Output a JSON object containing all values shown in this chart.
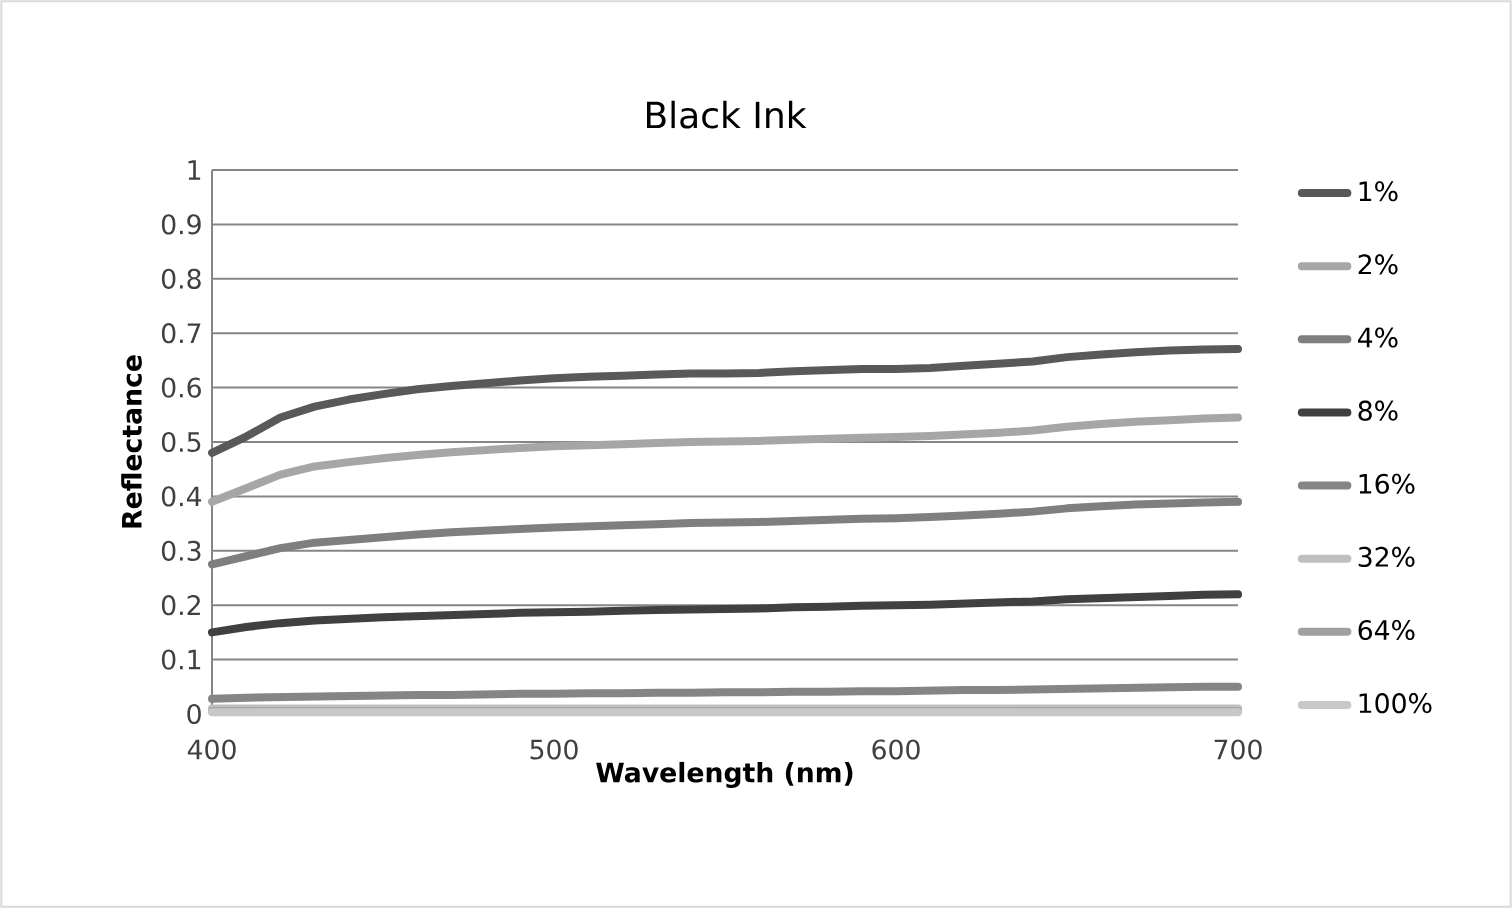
{
  "chart_data": {
    "type": "line",
    "title": "Black Ink",
    "xlabel": "Wavelength (nm)",
    "ylabel": "Reflectance",
    "x": [
      400,
      410,
      420,
      430,
      440,
      450,
      460,
      470,
      480,
      490,
      500,
      510,
      520,
      530,
      540,
      550,
      560,
      570,
      580,
      590,
      600,
      610,
      620,
      630,
      640,
      650,
      660,
      670,
      680,
      690,
      700
    ],
    "xlim": [
      400,
      700
    ],
    "xticks": [
      400,
      500,
      600,
      700
    ],
    "ylim": [
      0,
      1
    ],
    "yticks": [
      0,
      0.1,
      0.2,
      0.3,
      0.4,
      0.5,
      0.6,
      0.7,
      0.8,
      0.9,
      1
    ],
    "grid": "y",
    "legend": "right",
    "marker": "none",
    "line_style": "solid",
    "series": [
      {
        "name": "1%",
        "color": "#595959",
        "values": [
          0.48,
          0.51,
          0.545,
          0.565,
          0.578,
          0.588,
          0.597,
          0.603,
          0.608,
          0.613,
          0.617,
          0.62,
          0.622,
          0.624,
          0.626,
          0.626,
          0.627,
          0.63,
          0.632,
          0.634,
          0.634,
          0.636,
          0.64,
          0.644,
          0.648,
          0.656,
          0.661,
          0.665,
          0.668,
          0.67,
          0.671
        ]
      },
      {
        "name": "2%",
        "color": "#a6a6a6",
        "values": [
          0.39,
          0.415,
          0.44,
          0.455,
          0.463,
          0.47,
          0.476,
          0.481,
          0.485,
          0.489,
          0.492,
          0.494,
          0.496,
          0.498,
          0.5,
          0.501,
          0.502,
          0.504,
          0.506,
          0.508,
          0.509,
          0.511,
          0.514,
          0.517,
          0.521,
          0.528,
          0.533,
          0.537,
          0.54,
          0.543,
          0.545
        ]
      },
      {
        "name": "4%",
        "color": "#7f7f7f",
        "values": [
          0.275,
          0.29,
          0.305,
          0.315,
          0.32,
          0.325,
          0.33,
          0.334,
          0.337,
          0.34,
          0.343,
          0.345,
          0.347,
          0.349,
          0.351,
          0.352,
          0.353,
          0.355,
          0.357,
          0.359,
          0.36,
          0.362,
          0.365,
          0.368,
          0.372,
          0.378,
          0.382,
          0.385,
          0.387,
          0.389,
          0.39
        ]
      },
      {
        "name": "8%",
        "color": "#404040",
        "values": [
          0.15,
          0.16,
          0.167,
          0.172,
          0.175,
          0.178,
          0.18,
          0.182,
          0.184,
          0.186,
          0.187,
          0.188,
          0.19,
          0.191,
          0.192,
          0.193,
          0.194,
          0.196,
          0.197,
          0.199,
          0.2,
          0.201,
          0.203,
          0.205,
          0.207,
          0.211,
          0.213,
          0.215,
          0.217,
          0.219,
          0.22
        ]
      },
      {
        "name": "16%",
        "color": "#858585",
        "values": [
          0.028,
          0.03,
          0.031,
          0.032,
          0.033,
          0.034,
          0.035,
          0.035,
          0.036,
          0.037,
          0.037,
          0.038,
          0.038,
          0.039,
          0.039,
          0.04,
          0.04,
          0.041,
          0.041,
          0.042,
          0.042,
          0.043,
          0.044,
          0.044,
          0.045,
          0.046,
          0.047,
          0.048,
          0.049,
          0.05,
          0.05
        ]
      },
      {
        "name": "32%",
        "color": "#bfbfbf",
        "values": [
          0.01,
          0.01,
          0.01,
          0.01,
          0.01,
          0.01,
          0.01,
          0.01,
          0.01,
          0.01,
          0.01,
          0.01,
          0.01,
          0.01,
          0.01,
          0.01,
          0.01,
          0.01,
          0.01,
          0.01,
          0.01,
          0.01,
          0.01,
          0.01,
          0.01,
          0.01,
          0.01,
          0.01,
          0.01,
          0.01,
          0.01
        ]
      },
      {
        "name": "64%",
        "color": "#a0a0a0",
        "values": [
          0.005,
          0.005,
          0.005,
          0.005,
          0.005,
          0.005,
          0.005,
          0.005,
          0.005,
          0.005,
          0.005,
          0.005,
          0.005,
          0.005,
          0.005,
          0.005,
          0.005,
          0.005,
          0.005,
          0.005,
          0.005,
          0.005,
          0.005,
          0.005,
          0.005,
          0.005,
          0.005,
          0.005,
          0.005,
          0.005,
          0.005
        ]
      },
      {
        "name": "100%",
        "color": "#c8c8c8",
        "values": [
          0.003,
          0.003,
          0.003,
          0.003,
          0.003,
          0.003,
          0.003,
          0.003,
          0.003,
          0.003,
          0.003,
          0.003,
          0.003,
          0.003,
          0.003,
          0.003,
          0.003,
          0.003,
          0.003,
          0.003,
          0.003,
          0.003,
          0.003,
          0.003,
          0.003,
          0.003,
          0.003,
          0.003,
          0.003,
          0.003,
          0.003
        ]
      }
    ]
  }
}
